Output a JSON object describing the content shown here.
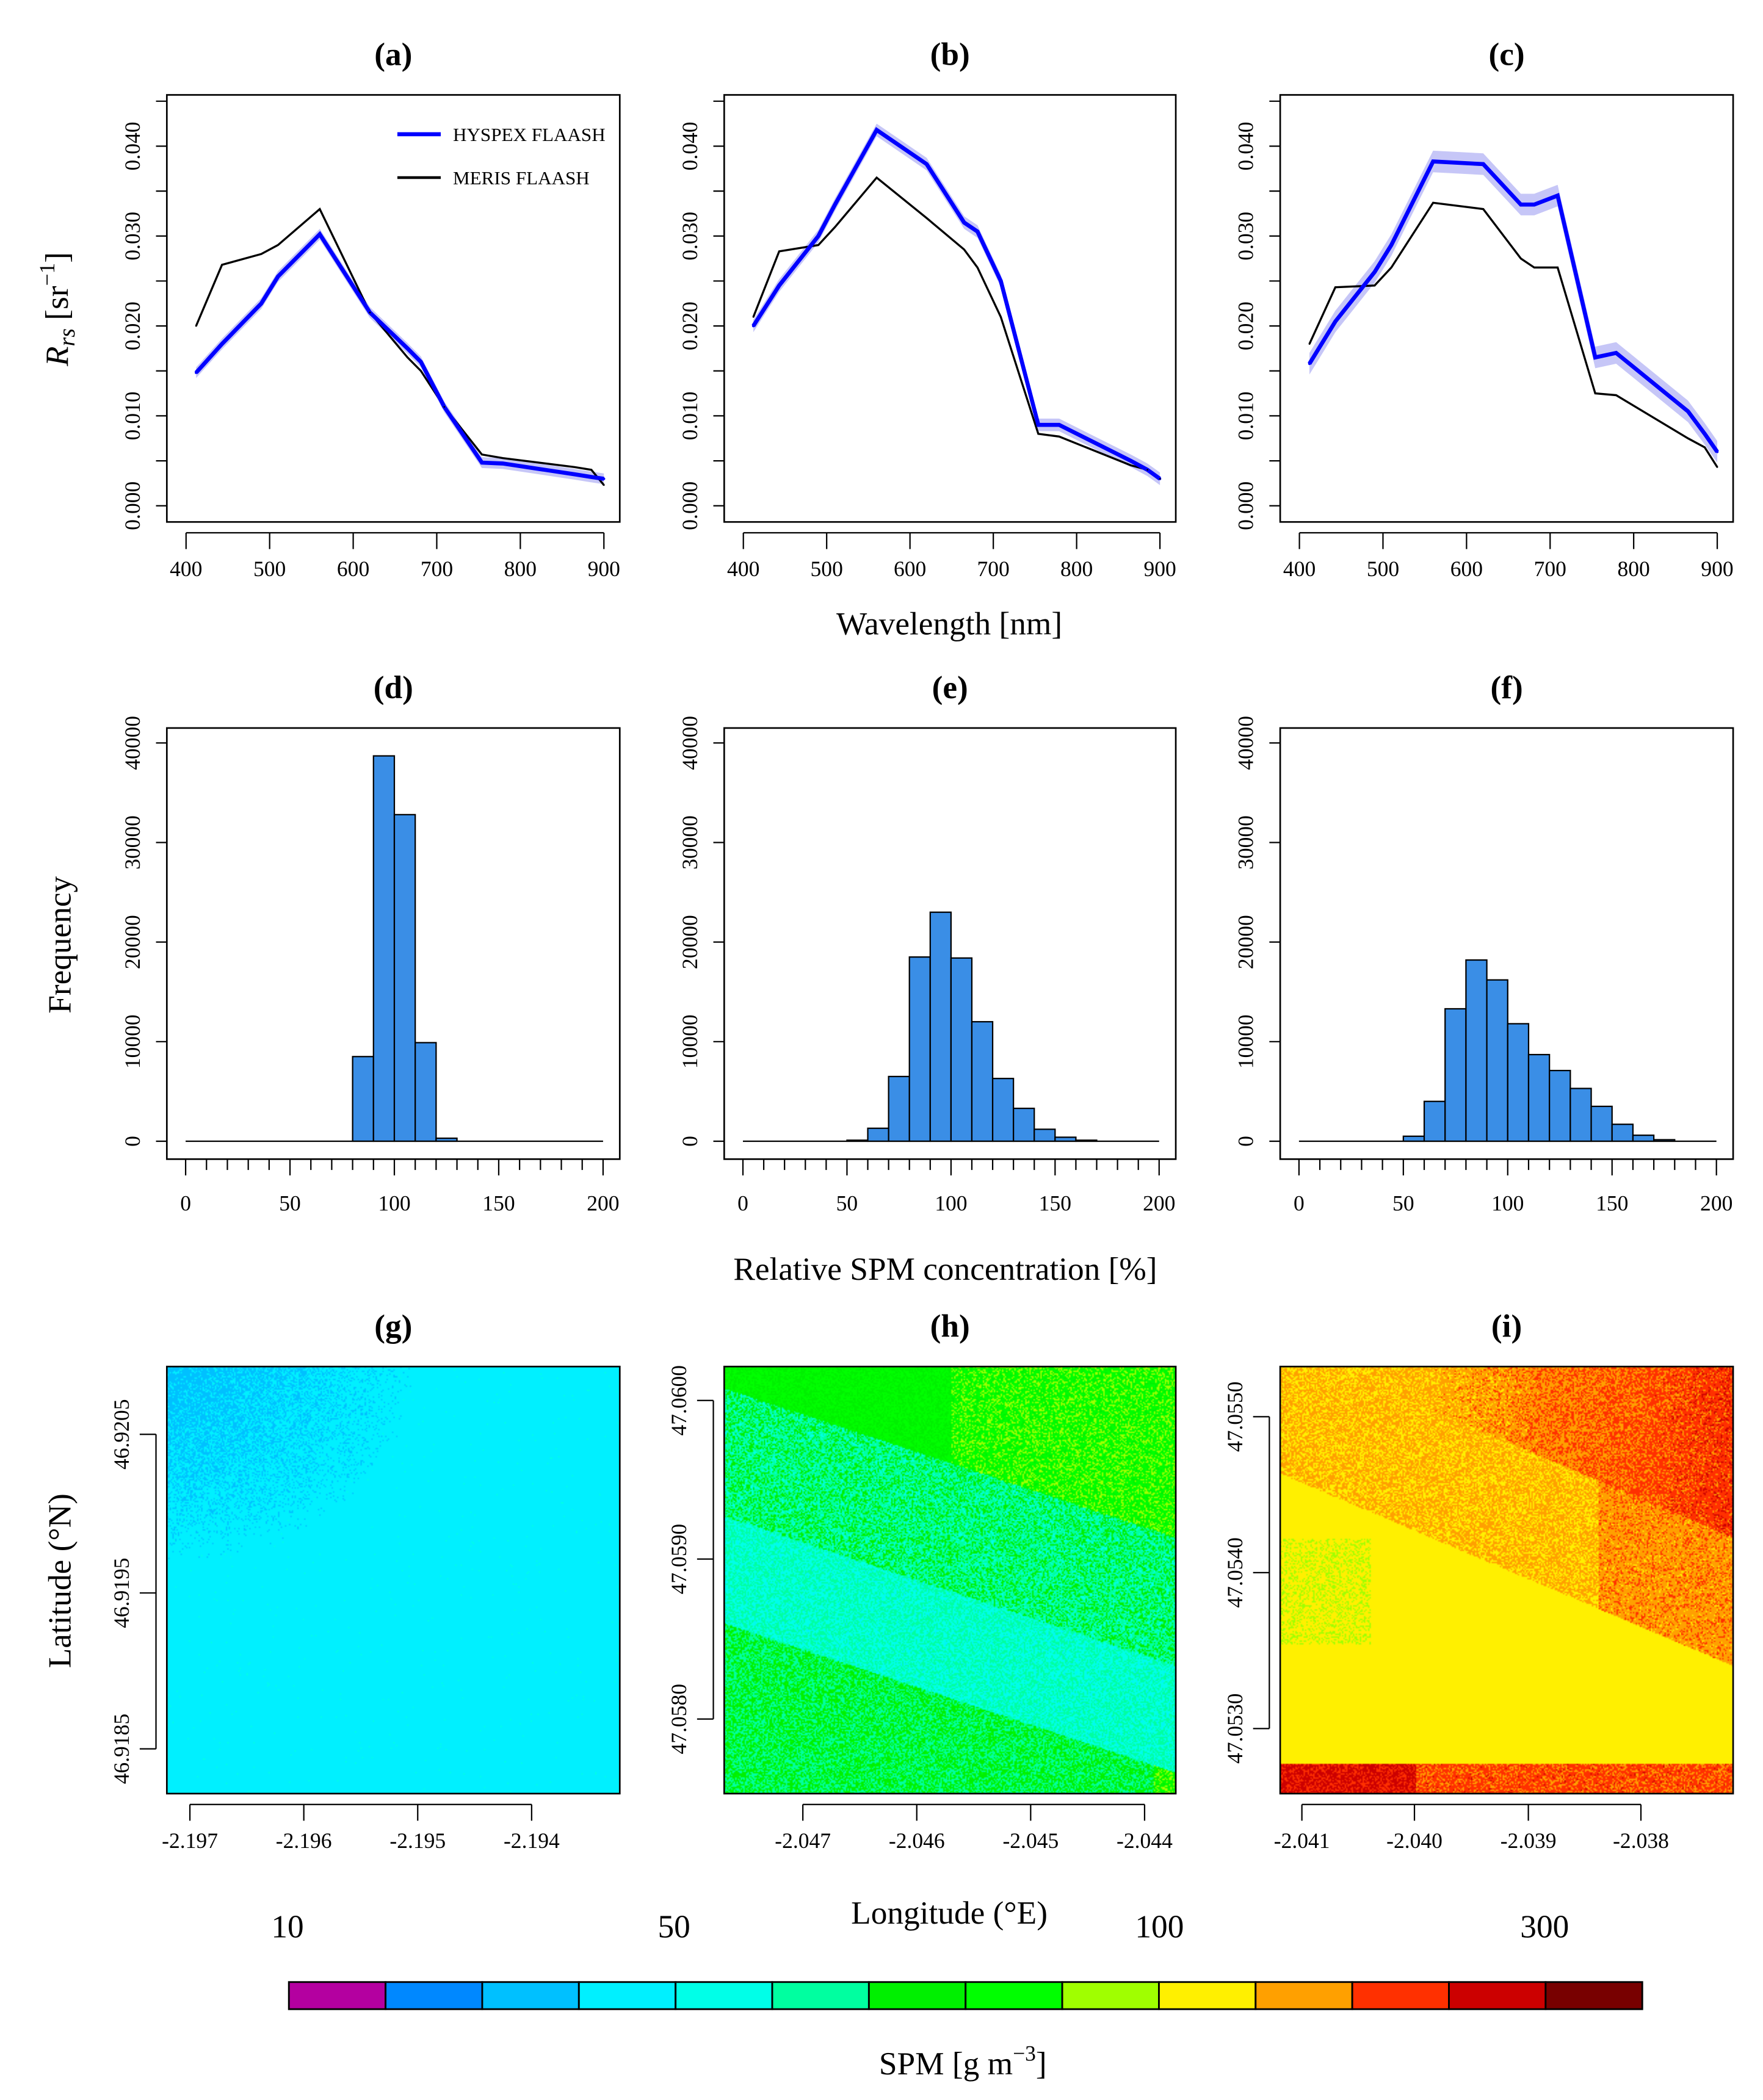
{
  "chart_data": [
    {
      "type": "line",
      "panel": "a",
      "title": "(a)",
      "xlim": [
        377,
        919
      ],
      "ylim": [
        -0.0018,
        0.0457
      ],
      "x": [
        412,
        443,
        490,
        510,
        560,
        620,
        665,
        681,
        709,
        754,
        779,
        865,
        885,
        900
      ],
      "series": [
        {
          "name": "HYSPEX FLAASH",
          "color": "#0000ff",
          "values": [
            0.0148,
            0.018,
            0.0225,
            0.0255,
            0.0302,
            0.0215,
            0.0175,
            0.016,
            0.011,
            0.0048,
            0.0047,
            0.0035,
            0.0032,
            0.003
          ],
          "band": 0.0006
        },
        {
          "name": "MERIS FLAASH",
          "color": "#000000",
          "values": [
            0.02,
            0.0268,
            0.028,
            0.029,
            0.033,
            0.0215,
            0.0165,
            0.015,
            0.011,
            0.0057,
            0.0053,
            0.0043,
            0.004,
            0.0023
          ]
        }
      ]
    },
    {
      "type": "line",
      "panel": "b",
      "title": "(b)",
      "xlim": [
        377,
        919
      ],
      "ylim": [
        -0.0018,
        0.0457
      ],
      "x": [
        412,
        443,
        490,
        510,
        560,
        620,
        665,
        681,
        709,
        754,
        779,
        865,
        885,
        900
      ],
      "series": [
        {
          "name": "HYSPEX FLAASH",
          "color": "#0000ff",
          "values": [
            0.02,
            0.0245,
            0.03,
            0.0335,
            0.0418,
            0.038,
            0.0315,
            0.0305,
            0.025,
            0.009,
            0.009,
            0.005,
            0.004,
            0.003
          ],
          "band": 0.0007
        },
        {
          "name": "MERIS FLAASH",
          "color": "#000000",
          "values": [
            0.021,
            0.0283,
            0.029,
            0.031,
            0.0365,
            0.032,
            0.0285,
            0.0265,
            0.021,
            0.008,
            0.0077,
            0.0045,
            0.004,
            0.003
          ]
        }
      ]
    },
    {
      "type": "line",
      "panel": "c",
      "title": "(c)",
      "xlim": [
        377,
        919
      ],
      "ylim": [
        -0.0018,
        0.0457
      ],
      "x": [
        412,
        443,
        490,
        510,
        560,
        620,
        665,
        681,
        709,
        754,
        779,
        865,
        885,
        900
      ],
      "series": [
        {
          "name": "HYSPEX FLAASH",
          "color": "#0000ff",
          "values": [
            0.0158,
            0.0205,
            0.026,
            0.029,
            0.0383,
            0.038,
            0.0335,
            0.0335,
            0.0345,
            0.0165,
            0.017,
            0.0105,
            0.008,
            0.006
          ],
          "band": 0.0012
        },
        {
          "name": "MERIS FLAASH",
          "color": "#000000",
          "values": [
            0.018,
            0.0243,
            0.0245,
            0.0265,
            0.0337,
            0.033,
            0.0275,
            0.0265,
            0.0265,
            0.0125,
            0.0123,
            0.0075,
            0.0065,
            0.0043
          ]
        }
      ]
    },
    {
      "type": "bar",
      "panel": "d",
      "title": "(d)",
      "xlim": [
        -9,
        208
      ],
      "ylim": [
        -1800,
        41500
      ],
      "bin_width": 10,
      "bins": [
        0,
        10,
        20,
        30,
        40,
        50,
        60,
        70,
        80,
        90,
        100,
        110,
        120,
        130,
        140,
        150,
        160,
        170,
        180,
        190
      ],
      "values": [
        0,
        0,
        0,
        0,
        0,
        0,
        0,
        0,
        8500,
        38700,
        32800,
        9900,
        300,
        0,
        0,
        0,
        0,
        0,
        0,
        0
      ]
    },
    {
      "type": "bar",
      "panel": "e",
      "title": "(e)",
      "xlim": [
        -9,
        208
      ],
      "ylim": [
        -1800,
        41500
      ],
      "bin_width": 10,
      "bins": [
        0,
        10,
        20,
        30,
        40,
        50,
        60,
        70,
        80,
        90,
        100,
        110,
        120,
        130,
        140,
        150,
        160,
        170,
        180,
        190
      ],
      "values": [
        0,
        0,
        0,
        0,
        0,
        100,
        1300,
        6500,
        18500,
        23000,
        18400,
        12000,
        6300,
        3300,
        1200,
        400,
        100,
        0,
        0,
        0
      ]
    },
    {
      "type": "bar",
      "panel": "f",
      "title": "(f)",
      "xlim": [
        -9,
        208
      ],
      "ylim": [
        -1800,
        41500
      ],
      "bin_width": 10,
      "bins": [
        0,
        10,
        20,
        30,
        40,
        50,
        60,
        70,
        80,
        90,
        100,
        110,
        120,
        130,
        140,
        150,
        160,
        170,
        180,
        190
      ],
      "values": [
        0,
        0,
        0,
        0,
        0,
        500,
        4000,
        13300,
        18200,
        16200,
        11800,
        8700,
        7100,
        5300,
        3500,
        1700,
        600,
        150,
        0,
        0
      ]
    },
    {
      "type": "heatmap",
      "panel": "g",
      "title": "(g)",
      "lon_ticks": [
        "-2.197",
        "-2.196",
        "-2.195",
        "-2.194"
      ],
      "lat_ticks": [
        "46.9185",
        "46.9195",
        "46.9205"
      ]
    },
    {
      "type": "heatmap",
      "panel": "h",
      "title": "(h)",
      "lon_ticks": [
        "-2.047",
        "-2.046",
        "-2.045",
        "-2.044"
      ],
      "lat_ticks": [
        "47.0580",
        "47.0590",
        "47.0600"
      ]
    },
    {
      "type": "heatmap",
      "panel": "i",
      "title": "(i)",
      "lon_ticks": [
        "-2.041",
        "-2.040",
        "-2.039",
        "-2.038"
      ],
      "lat_ticks": [
        "47.0530",
        "47.0540",
        "47.0550"
      ]
    }
  ],
  "axes": {
    "rrs_y_ticks": [
      "0.000",
      "0.010",
      "0.020",
      "0.030",
      "0.040"
    ],
    "wl_x_ticks": [
      "400",
      "500",
      "600",
      "700",
      "800",
      "900"
    ],
    "freq_y_ticks": [
      "0",
      "10000",
      "20000",
      "30000",
      "40000"
    ],
    "spm_x_ticks": [
      "0",
      "50",
      "100",
      "150",
      "200"
    ],
    "ylabel_rrs_R": "R",
    "ylabel_rrs_sub": "rs",
    "ylabel_rrs_unit": " [sr",
    "ylabel_rrs_sup": "−1",
    "ylabel_rrs_close": "]",
    "xlabel_wl": "Wavelength [nm]",
    "ylabel_freq": "Frequency",
    "xlabel_spm": "Relative SPM concentration [%]",
    "ylabel_lat": "Latitude (°N)",
    "xlabel_lon": "Longitude (°E)"
  },
  "legend": {
    "items": [
      "HYSPEX FLAASH",
      "MERIS FLAASH"
    ],
    "colors": [
      "#0000ff",
      "#000000"
    ],
    "placement": "top-right"
  },
  "colorbar": {
    "labels": [
      "10",
      "50",
      "100",
      "300"
    ],
    "title": "SPM [g m",
    "title_sup": "−3",
    "title_close": "]",
    "colors": [
      "#b400a0",
      "#0088ff",
      "#00c0ff",
      "#00f0ff",
      "#00ffe8",
      "#00ffa0",
      "#00f000",
      "#00ff00",
      "#a0ff00",
      "#fff000",
      "#ffa000",
      "#ff3000",
      "#cc0000",
      "#780000"
    ]
  },
  "colors": {
    "hist_fill": "#3a8ee6",
    "band": "#b8b8f5"
  }
}
